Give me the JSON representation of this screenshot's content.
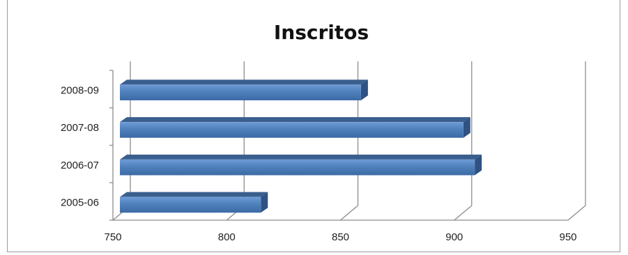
{
  "chart_data": {
    "type": "bar",
    "orientation": "horizontal",
    "title": "Inscritos",
    "categories": [
      "2005-06",
      "2006-07",
      "2007-08",
      "2008-09"
    ],
    "values": [
      815,
      909,
      904,
      859
    ],
    "xlim": [
      750,
      950
    ],
    "xticks": [
      750,
      800,
      850,
      900,
      950
    ],
    "grid": true,
    "legend": "none",
    "bar_color": "#4f81bd",
    "style": "3d"
  }
}
